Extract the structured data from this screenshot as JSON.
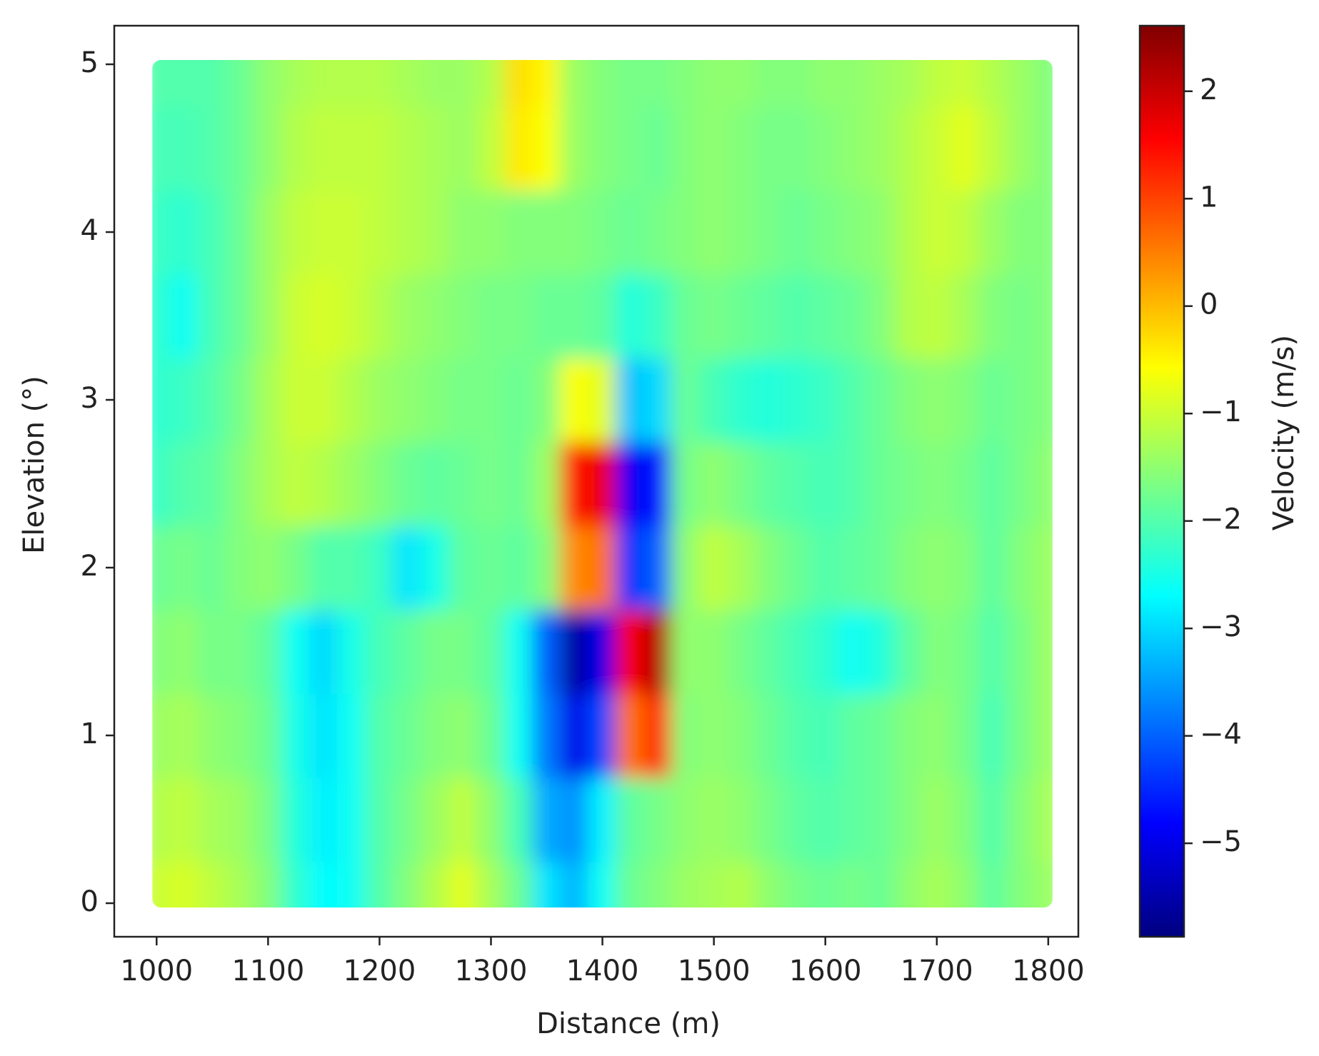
{
  "chart_data": {
    "type": "heatmap",
    "xlabel": "Distance (m)",
    "ylabel": "Elevation (°)",
    "colorbar_label": "Velocity (m/s)",
    "colormap": "jet",
    "x": [
      1000,
      1025,
      1050,
      1075,
      1100,
      1125,
      1150,
      1175,
      1200,
      1225,
      1250,
      1275,
      1300,
      1325,
      1350,
      1375,
      1400,
      1425,
      1450,
      1475,
      1500,
      1525,
      1550,
      1575,
      1600,
      1625,
      1650,
      1675,
      1700,
      1725,
      1750,
      1775,
      1800
    ],
    "y": [
      0,
      0.5,
      1,
      1.5,
      2,
      2.5,
      3,
      3.5,
      4,
      4.5,
      5
    ],
    "z": [
      [
        -1.0,
        -0.9,
        -1.1,
        -1.3,
        -1.6,
        -2.3,
        -2.7,
        -2.6,
        -2.0,
        -1.6,
        -1.2,
        -0.8,
        -1.3,
        -1.8,
        -2.9,
        -3.3,
        -2.6,
        -1.8,
        -1.6,
        -1.4,
        -1.3,
        -1.2,
        -1.5,
        -1.7,
        -1.8,
        -1.7,
        -1.8,
        -1.5,
        -1.3,
        -1.5,
        -1.9,
        -1.6,
        -1.4
      ],
      [
        -1.2,
        -1.1,
        -1.3,
        -1.4,
        -1.7,
        -2.4,
        -2.8,
        -2.6,
        -2.0,
        -1.7,
        -1.4,
        -1.1,
        -1.5,
        -2.1,
        -3.4,
        -3.6,
        -2.8,
        -1.9,
        -1.7,
        -1.5,
        -1.4,
        -1.5,
        -1.7,
        -1.9,
        -2.0,
        -1.9,
        -1.8,
        -1.6,
        -1.4,
        -1.6,
        -2.0,
        -1.6,
        -1.3
      ],
      [
        -1.4,
        -1.3,
        -1.5,
        -1.6,
        -1.8,
        -2.5,
        -2.9,
        -2.6,
        -2.0,
        -1.8,
        -1.6,
        -1.5,
        -1.8,
        -2.6,
        -3.8,
        -5.0,
        -4.2,
        0.6,
        1.2,
        -1.6,
        -1.5,
        -1.6,
        -1.8,
        -2.0,
        -2.1,
        -1.9,
        -1.8,
        -1.6,
        -1.5,
        -1.7,
        -2.1,
        -1.7,
        -1.4
      ],
      [
        -1.6,
        -1.5,
        -1.7,
        -1.7,
        -1.9,
        -2.6,
        -3.0,
        -2.5,
        -2.1,
        -1.9,
        -1.7,
        -1.7,
        -1.9,
        -2.6,
        -4.0,
        -5.6,
        -5.0,
        1.6,
        2.2,
        -1.5,
        -1.5,
        -1.7,
        -1.9,
        -2.1,
        -2.3,
        -2.6,
        -2.4,
        -1.9,
        -1.6,
        -1.7,
        -2.0,
        -1.7,
        -1.4
      ],
      [
        -1.8,
        -1.7,
        -1.8,
        -1.6,
        -1.5,
        -1.7,
        -2.0,
        -2.0,
        -2.2,
        -2.9,
        -2.5,
        -1.9,
        -1.8,
        -1.9,
        -1.6,
        0.4,
        0.6,
        -4.4,
        -4.0,
        -1.5,
        -1.1,
        -1.3,
        -1.6,
        -1.8,
        -2.0,
        -1.9,
        -1.8,
        -1.6,
        -1.5,
        -1.6,
        -1.9,
        -1.6,
        -1.4
      ],
      [
        -2.2,
        -2.0,
        -1.9,
        -1.6,
        -1.3,
        -1.1,
        -1.2,
        -1.4,
        -1.6,
        -1.8,
        -1.9,
        -1.8,
        -1.7,
        -1.8,
        -1.4,
        1.4,
        1.7,
        -4.9,
        -4.6,
        -1.7,
        -1.5,
        -1.7,
        -1.9,
        -2.0,
        -2.1,
        -2.0,
        -1.8,
        -1.7,
        -1.6,
        -1.7,
        -1.9,
        -1.7,
        -1.5
      ],
      [
        -2.3,
        -2.2,
        -2.0,
        -1.7,
        -1.3,
        -1.0,
        -1.0,
        -1.2,
        -1.4,
        -1.5,
        -1.6,
        -1.7,
        -1.7,
        -1.8,
        -1.6,
        -0.6,
        -0.8,
        -3.2,
        -3.0,
        -1.8,
        -2.1,
        -2.3,
        -2.4,
        -2.3,
        -2.2,
        -2.0,
        -1.8,
        -1.6,
        -1.5,
        -1.6,
        -1.8,
        -1.7,
        -1.6
      ],
      [
        -2.3,
        -2.6,
        -2.1,
        -1.8,
        -1.4,
        -1.0,
        -0.9,
        -1.0,
        -1.2,
        -1.4,
        -1.5,
        -1.6,
        -1.7,
        -1.7,
        -1.8,
        -1.8,
        -1.9,
        -2.4,
        -2.2,
        -1.8,
        -1.7,
        -1.8,
        -1.9,
        -2.0,
        -1.9,
        -1.8,
        -1.6,
        -1.2,
        -1.1,
        -1.3,
        -1.6,
        -1.7,
        -1.6
      ],
      [
        -2.2,
        -2.3,
        -2.1,
        -1.8,
        -1.4,
        -1.1,
        -1.0,
        -1.0,
        -1.1,
        -1.2,
        -1.3,
        -1.5,
        -1.5,
        -1.6,
        -1.6,
        -1.6,
        -1.7,
        -1.8,
        -1.7,
        -1.6,
        -1.5,
        -1.6,
        -1.7,
        -1.8,
        -1.7,
        -1.6,
        -1.5,
        -1.2,
        -1.0,
        -1.1,
        -1.4,
        -1.6,
        -1.6
      ],
      [
        -2.1,
        -2.1,
        -2.0,
        -1.8,
        -1.5,
        -1.2,
        -1.1,
        -1.1,
        -1.1,
        -1.2,
        -1.3,
        -1.4,
        -1.1,
        -0.4,
        -0.6,
        -1.4,
        -1.6,
        -1.7,
        -1.8,
        -1.6,
        -1.5,
        -1.6,
        -1.7,
        -1.7,
        -1.6,
        -1.5,
        -1.4,
        -1.2,
        -1.0,
        -0.8,
        -1.1,
        -1.4,
        -1.6
      ],
      [
        -2.0,
        -2.0,
        -2.0,
        -1.8,
        -1.5,
        -1.3,
        -1.2,
        -1.2,
        -1.2,
        -1.3,
        -1.4,
        -1.4,
        -1.2,
        -0.3,
        -0.5,
        -1.4,
        -1.6,
        -1.7,
        -1.7,
        -1.6,
        -1.5,
        -1.5,
        -1.6,
        -1.6,
        -1.5,
        -1.5,
        -1.4,
        -1.3,
        -1.1,
        -1.0,
        -1.2,
        -1.4,
        -1.6
      ]
    ],
    "xlim": [
      962,
      1827
    ],
    "ylim": [
      -0.2,
      5.23
    ],
    "xticks": [
      1000,
      1100,
      1200,
      1300,
      1400,
      1500,
      1600,
      1700,
      1800
    ],
    "yticks": [
      0,
      1,
      2,
      3,
      4,
      5
    ],
    "clim": [
      -5.87,
      2.61
    ],
    "cticks": [
      {
        "value": -5,
        "label": "−5"
      },
      {
        "value": -4,
        "label": "−4"
      },
      {
        "value": -3,
        "label": "−3"
      },
      {
        "value": -2,
        "label": "−2"
      },
      {
        "value": -1,
        "label": "−1"
      },
      0,
      1,
      2
    ]
  }
}
